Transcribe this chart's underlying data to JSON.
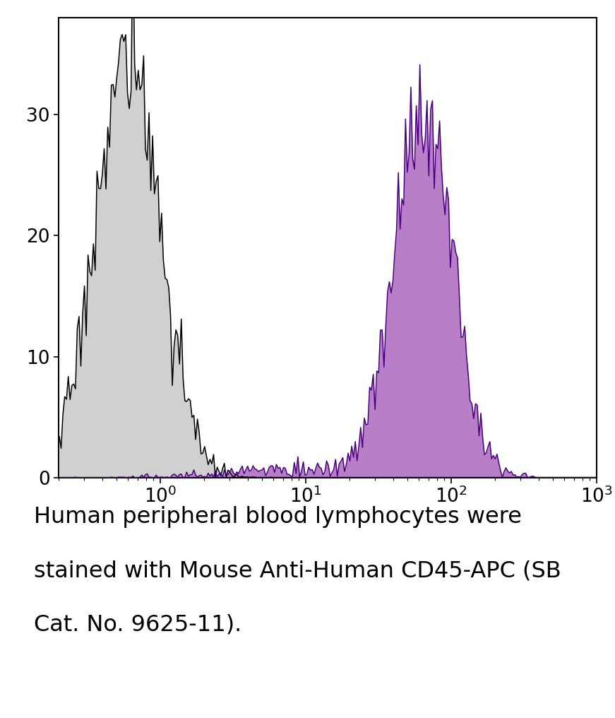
{
  "xlim": [
    0.2,
    1000
  ],
  "ylim": [
    0,
    38
  ],
  "yticks": [
    0,
    10,
    20,
    30
  ],
  "background_color": "#ffffff",
  "plot_bg_color": "#ffffff",
  "border_color": "#000000",
  "caption_line1": "Human peripheral blood lymphocytes were",
  "caption_line2": "stained with Mouse Anti-Human CD45-APC (SB",
  "caption_line3": "Cat. No. 9625-11).",
  "caption_fontsize": 23,
  "isotype_color": "#000000",
  "isotype_fill": "#d0d0d0",
  "cd45_color": "#4a0080",
  "cd45_fill": "#b87ec8",
  "isotype_peak_y": 36,
  "cd45_peak_y": 31,
  "axis_linewidth": 1.5,
  "hist_linewidth": 1.1,
  "n_bins": 300
}
